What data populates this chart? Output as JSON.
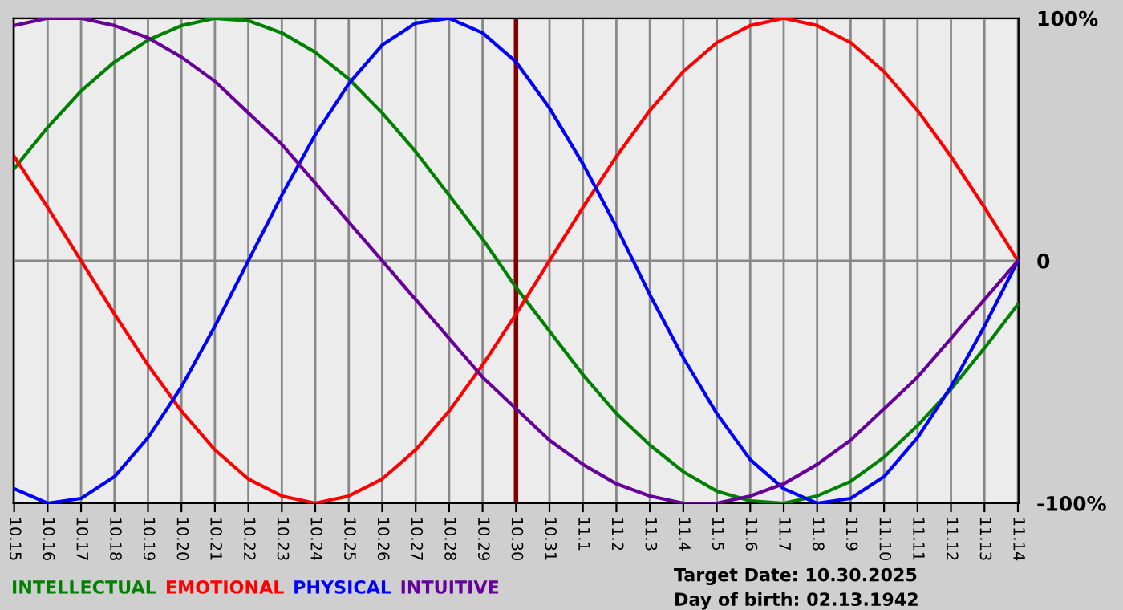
{
  "chart_data": {
    "type": "line",
    "categories": [
      "10.15",
      "10.16",
      "10.17",
      "10.18",
      "10.19",
      "10.20",
      "10.21",
      "10.22",
      "10.23",
      "10.24",
      "10.25",
      "10.26",
      "10.27",
      "10.28",
      "10.29",
      "10.30",
      "10.31",
      "11.1",
      "11.2",
      "11.3",
      "11.4",
      "11.5",
      "11.6",
      "11.7",
      "11.8",
      "11.9",
      "11.10",
      "11.11",
      "11.12",
      "11.13",
      "11.14"
    ],
    "series": [
      {
        "name": "INTELLECTUAL",
        "color": "#008000",
        "values": [
          38,
          55,
          70,
          82,
          91,
          97,
          100,
          99,
          94,
          86,
          75,
          61,
          45,
          27,
          9,
          -11,
          -29,
          -47,
          -63,
          -76,
          -87,
          -95,
          -99,
          -100,
          -97,
          -91,
          -81,
          -68,
          -53,
          -36,
          -18
        ]
      },
      {
        "name": "EMOTIONAL",
        "color": "#ff0000",
        "values": [
          43,
          22,
          0,
          -22,
          -43,
          -62,
          -78,
          -90,
          -97,
          -100,
          -97,
          -90,
          -78,
          -62,
          -43,
          -22,
          0,
          22,
          43,
          62,
          78,
          90,
          97,
          100,
          97,
          90,
          78,
          62,
          43,
          22,
          0
        ]
      },
      {
        "name": "PHYSICAL",
        "color": "#0000ff",
        "values": [
          -94,
          -100,
          -98,
          -89,
          -73,
          -52,
          -27,
          0,
          27,
          52,
          73,
          89,
          98,
          100,
          94,
          82,
          63,
          40,
          14,
          -14,
          -40,
          -63,
          -82,
          -94,
          -100,
          -98,
          -89,
          -73,
          -52,
          -27,
          0
        ]
      },
      {
        "name": "INTUITIVE",
        "color": "#660099",
        "values": [
          97,
          100,
          100,
          97,
          92,
          84,
          74,
          61,
          48,
          32,
          16,
          0,
          -16,
          -32,
          -48,
          -61,
          -74,
          -84,
          -92,
          -97,
          -100,
          -100,
          -97,
          -92,
          -84,
          -74,
          -61,
          -48,
          -32,
          -16,
          0
        ]
      }
    ],
    "ylim": [
      -100,
      100
    ],
    "yticks": [
      {
        "value": -100,
        "label": "-100%"
      },
      0,
      {
        "value": 100,
        "label": "100%"
      }
    ],
    "ref_lines": [
      {
        "axis": "x",
        "value": "10.30",
        "color": "#800000"
      }
    ],
    "annotations": [
      "Target Date: 10.30.2025",
      "Day of birth: 02.13.1942"
    ],
    "grid": true,
    "legend": "bottom left",
    "marker": "none",
    "line_style": "solid"
  }
}
